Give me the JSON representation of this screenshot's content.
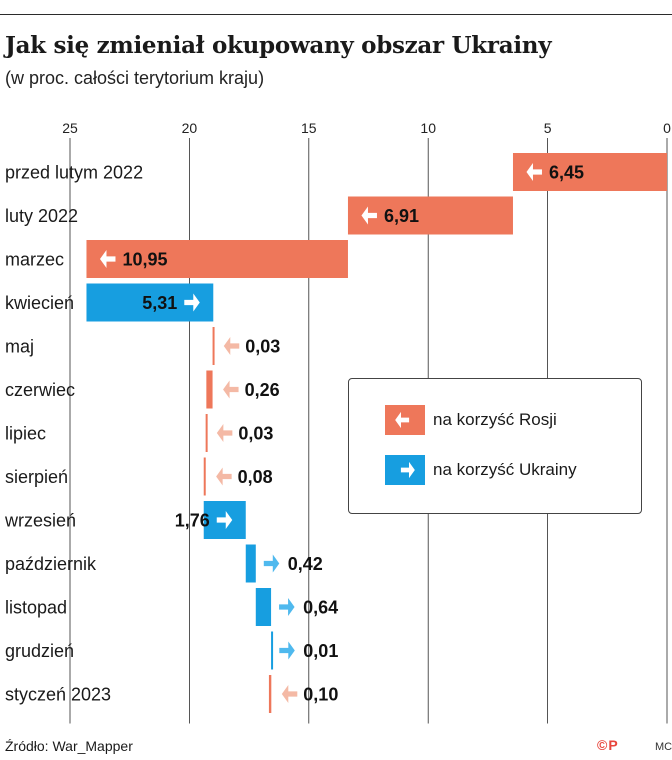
{
  "title": "Jak się zmieniał okupowany obszar Ukrainy",
  "subtitle": "(w proc. całości terytorium kraju)",
  "source": "Źródło: War_Mapper",
  "copyright": "©P",
  "credit": "MC",
  "colors": {
    "russia": "#ee775a",
    "russia_light": "#f4b9a5",
    "ukraine": "#179ee0",
    "ukraine_light": "#4fb9ee"
  },
  "legend": [
    {
      "label": "na korzyść Rosji",
      "direction": "left",
      "series": "russia"
    },
    {
      "label": "na korzyść Ukrainy",
      "direction": "right",
      "series": "ukraine"
    }
  ],
  "chart_data": {
    "type": "bar",
    "orientation": "horizontal-waterfall",
    "x_axis_reversed": true,
    "xlim": [
      0,
      25
    ],
    "xticks": [
      25,
      20,
      15,
      10,
      5,
      0
    ],
    "grid": true,
    "legend_position": "right",
    "items": [
      {
        "label": "przed lutym 2022",
        "value": 6.45,
        "value_label": "6,45",
        "direction": "russia"
      },
      {
        "label": "luty 2022",
        "value": 6.91,
        "value_label": "6,91",
        "direction": "russia"
      },
      {
        "label": "marzec",
        "value": 10.95,
        "value_label": "10,95",
        "direction": "russia"
      },
      {
        "label": "kwiecień",
        "value": 5.31,
        "value_label": "5,31",
        "direction": "ukraine"
      },
      {
        "label": "maj",
        "value": 0.03,
        "value_label": "0,03",
        "direction": "russia"
      },
      {
        "label": "czerwiec",
        "value": 0.26,
        "value_label": "0,26",
        "direction": "russia"
      },
      {
        "label": "lipiec",
        "value": 0.03,
        "value_label": "0,03",
        "direction": "russia"
      },
      {
        "label": "sierpień",
        "value": 0.08,
        "value_label": "0,08",
        "direction": "russia"
      },
      {
        "label": "wrzesień",
        "value": 1.76,
        "value_label": "1,76",
        "direction": "ukraine"
      },
      {
        "label": "październik",
        "value": 0.42,
        "value_label": "0,42",
        "direction": "ukraine"
      },
      {
        "label": "listopad",
        "value": 0.64,
        "value_label": "0,64",
        "direction": "ukraine"
      },
      {
        "label": "grudzień",
        "value": 0.01,
        "value_label": "0,01",
        "direction": "ukraine"
      },
      {
        "label": "styczeń 2023",
        "value": 0.1,
        "value_label": "0,10",
        "direction": "russia"
      }
    ]
  }
}
